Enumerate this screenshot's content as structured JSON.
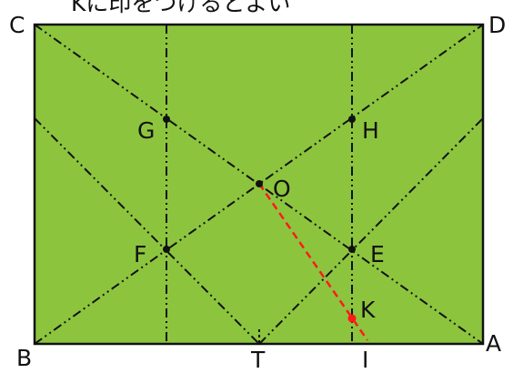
{
  "caption": "Kに印をつけるとよい",
  "colors": {
    "paper": "#8cc43e",
    "fold_line": "#111111",
    "highlight_line": "#ff1a1a",
    "highlight_point": "#ff1a1a",
    "label": "#111111"
  },
  "labels": {
    "C": "C",
    "D": "D",
    "B": "B",
    "A": "A",
    "G": "G",
    "H": "H",
    "O": "O",
    "F": "F",
    "E": "E",
    "K": "K",
    "T": "T",
    "I": "I"
  }
}
